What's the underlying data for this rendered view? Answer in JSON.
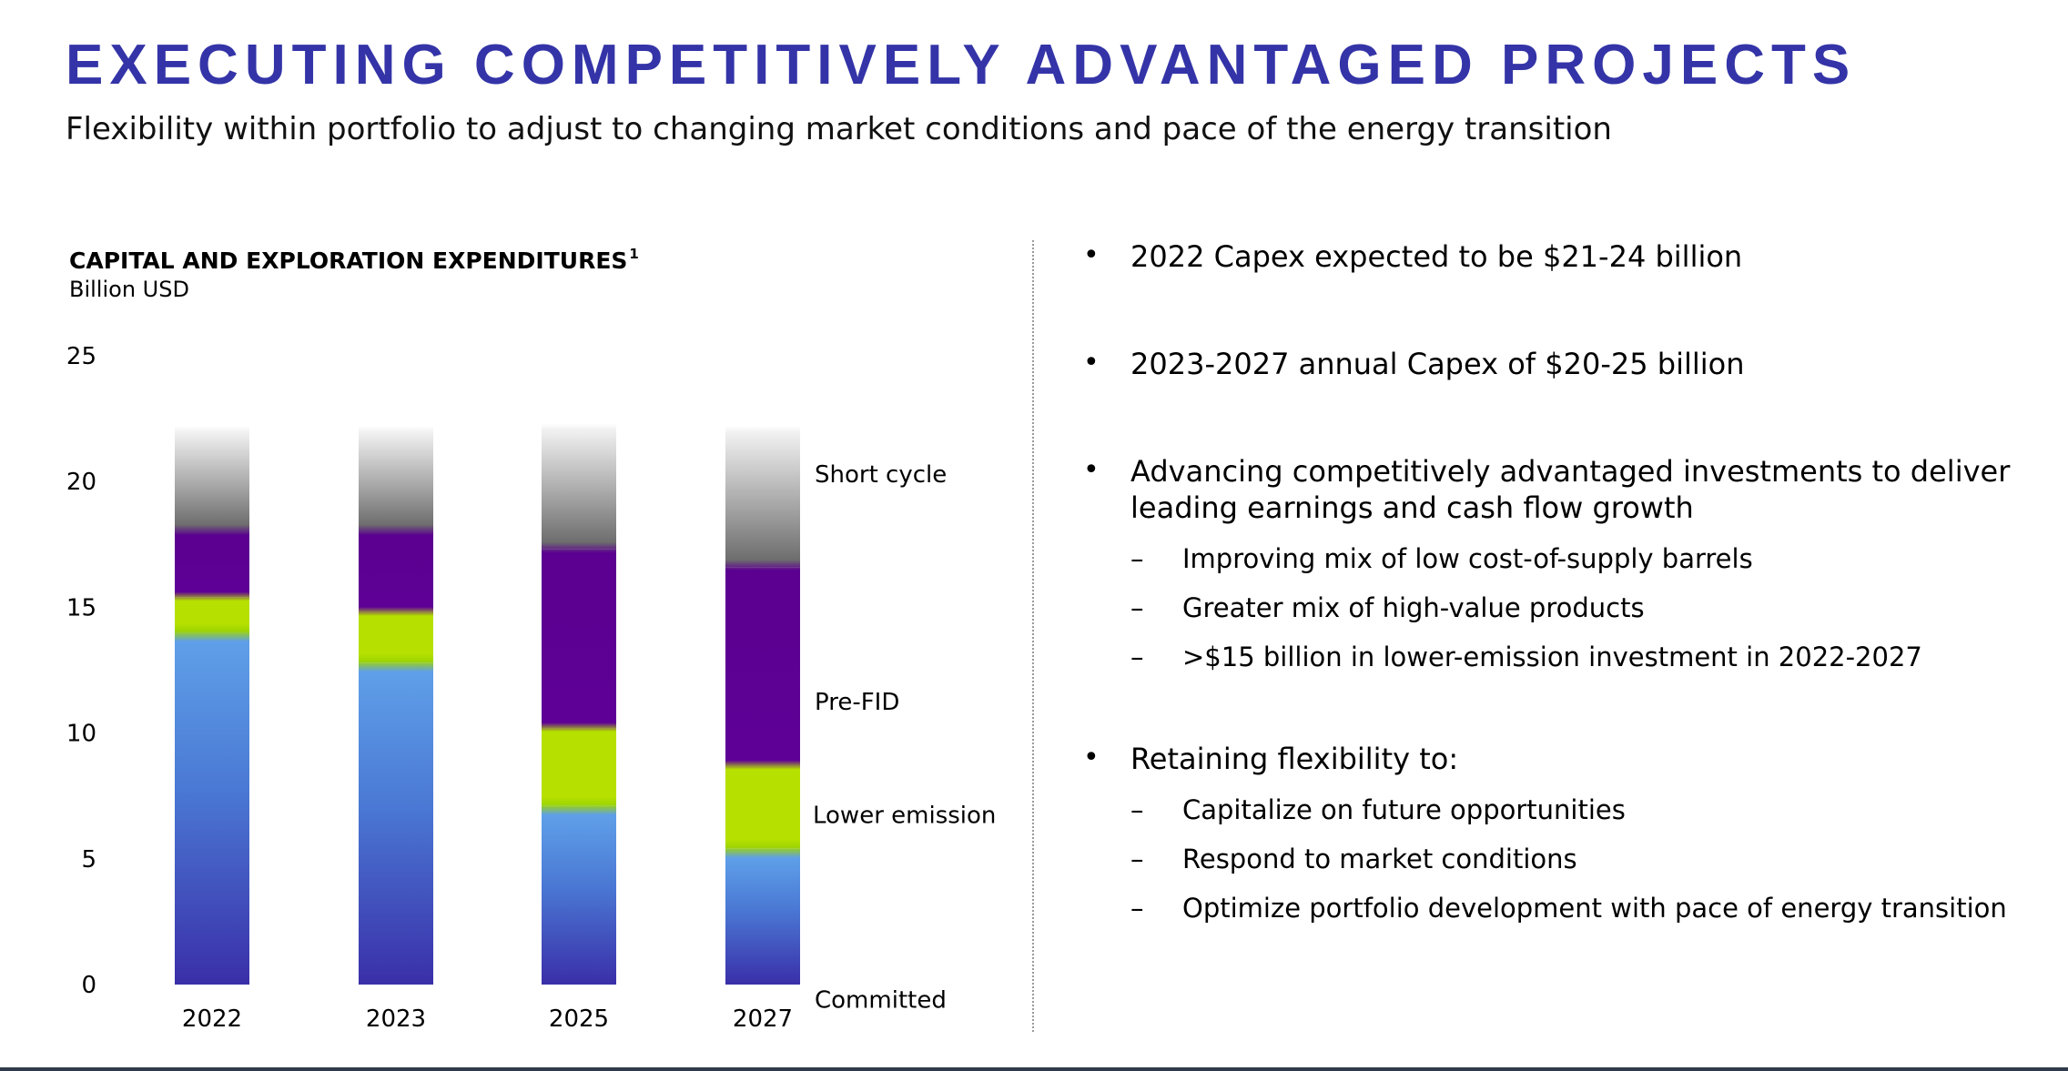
{
  "title": "EXECUTING COMPETITIVELY ADVANTAGED PROJECTS",
  "subtitle": "Flexibility within portfolio to adjust to changing market conditions and pace of the energy transition",
  "chart_data": {
    "type": "bar",
    "stacked": true,
    "title": "CAPITAL AND EXPLORATION EXPENDITURES",
    "title_footnote": "1",
    "ylabel": "Billion USD",
    "ylim": [
      0,
      25
    ],
    "yticks": [
      0,
      5,
      10,
      15,
      20,
      25
    ],
    "ytick_labels": [
      "0",
      "5",
      "10",
      "15",
      "20",
      "25"
    ],
    "categories": [
      "2022",
      "2023",
      "2025",
      "2027"
    ],
    "series": [
      {
        "name": "Committed",
        "color": "#4a7fd6",
        "values": [
          14.0,
          12.8,
          7.1,
          5.4
        ]
      },
      {
        "name": "Lower emission",
        "color": "#b6e000",
        "values": [
          1.4,
          2.0,
          3.1,
          3.3
        ]
      },
      {
        "name": "Pre-FID",
        "color": "#5b0090",
        "values": [
          2.6,
          3.2,
          7.1,
          7.9
        ]
      },
      {
        "name": "Short cycle",
        "color": "#8c8c8c",
        "values": [
          4.2,
          4.2,
          5.0,
          5.6
        ]
      }
    ],
    "grid": false,
    "legend": "right"
  },
  "bullets": [
    {
      "text": "2022 Capex expected to be $21-24 billion",
      "subs": []
    },
    {
      "text": "2023-2027 annual Capex of $20-25 billion",
      "subs": []
    },
    {
      "text": "Advancing competitively advantaged investments to deliver leading earnings and cash flow growth",
      "subs": [
        "Improving mix of low cost-of-supply barrels",
        "Greater mix of high-value products",
        ">$15 billion in lower-emission investment in 2022-2027"
      ]
    },
    {
      "text": "Retaining flexibility to:",
      "subs": [
        "Capitalize on future opportunities",
        "Respond to market conditions",
        "Optimize portfolio development with pace of energy transition"
      ]
    }
  ],
  "bullet_glyph": "•",
  "sub_glyph": "–"
}
